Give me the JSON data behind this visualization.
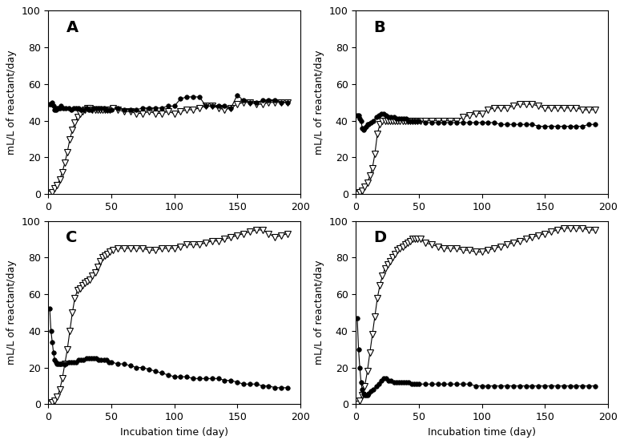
{
  "panels": [
    "A",
    "B",
    "C",
    "D"
  ],
  "xlabel": "Incubation time (day)",
  "ylabel": "mL/L of reactant/day",
  "xlim": [
    0,
    200
  ],
  "ylim": [
    0,
    100
  ],
  "xticks": [
    0,
    50,
    100,
    150,
    200
  ],
  "yticks": [
    0,
    20,
    40,
    60,
    80,
    100
  ],
  "A": {
    "co2_x": [
      1,
      2,
      3,
      4,
      5,
      6,
      7,
      8,
      9,
      10,
      12,
      14,
      16,
      18,
      20,
      22,
      24,
      26,
      28,
      30,
      32,
      34,
      36,
      38,
      40,
      42,
      44,
      46,
      48,
      50,
      55,
      60,
      65,
      70,
      75,
      80,
      85,
      90,
      95,
      100,
      105,
      110,
      115,
      120,
      125,
      130,
      135,
      140,
      145,
      150,
      155,
      160,
      165,
      170,
      175,
      180,
      185,
      190
    ],
    "co2_y": [
      49,
      49,
      50,
      48,
      46,
      46,
      47,
      47,
      47,
      48,
      47,
      47,
      47,
      46,
      47,
      47,
      47,
      46,
      46,
      47,
      46,
      46,
      47,
      47,
      47,
      47,
      47,
      46,
      46,
      46,
      47,
      46,
      46,
      46,
      47,
      47,
      47,
      47,
      48,
      48,
      52,
      53,
      53,
      53,
      48,
      48,
      48,
      48,
      47,
      54,
      51,
      50,
      50,
      51,
      51,
      51,
      50,
      50
    ],
    "ch4_x": [
      1,
      3,
      5,
      7,
      9,
      11,
      13,
      15,
      17,
      19,
      21,
      23,
      25,
      27,
      29,
      31,
      33,
      35,
      37,
      39,
      41,
      43,
      45,
      47,
      49,
      51,
      55,
      60,
      65,
      70,
      75,
      80,
      85,
      90,
      95,
      100,
      105,
      110,
      115,
      120,
      125,
      130,
      135,
      140,
      145,
      150,
      155,
      160,
      165,
      170,
      175,
      180,
      185,
      190
    ],
    "ch4_y": [
      0,
      1,
      3,
      5,
      8,
      12,
      17,
      23,
      30,
      35,
      39,
      42,
      44,
      45,
      46,
      47,
      47,
      46,
      46,
      46,
      46,
      46,
      46,
      46,
      46,
      47,
      46,
      45,
      45,
      44,
      44,
      45,
      44,
      44,
      45,
      44,
      45,
      46,
      46,
      47,
      48,
      48,
      47,
      46,
      47,
      49,
      50,
      50,
      49,
      49,
      50,
      50,
      50,
      50
    ]
  },
  "B": {
    "co2_x": [
      1,
      2,
      3,
      4,
      5,
      6,
      7,
      8,
      9,
      10,
      12,
      14,
      16,
      18,
      20,
      22,
      24,
      26,
      28,
      30,
      32,
      34,
      36,
      38,
      40,
      42,
      44,
      46,
      48,
      50,
      55,
      60,
      65,
      70,
      75,
      80,
      85,
      90,
      95,
      100,
      105,
      110,
      115,
      120,
      125,
      130,
      135,
      140,
      145,
      150,
      155,
      160,
      165,
      170,
      175,
      180,
      185,
      190
    ],
    "co2_y": [
      43,
      43,
      41,
      40,
      36,
      35,
      36,
      37,
      38,
      38,
      39,
      40,
      42,
      43,
      44,
      44,
      43,
      42,
      42,
      42,
      41,
      41,
      41,
      41,
      41,
      40,
      40,
      40,
      40,
      40,
      39,
      39,
      39,
      39,
      39,
      39,
      39,
      39,
      39,
      39,
      39,
      39,
      38,
      38,
      38,
      38,
      38,
      38,
      37,
      37,
      37,
      37,
      37,
      37,
      37,
      37,
      38,
      38
    ],
    "ch4_x": [
      1,
      3,
      5,
      7,
      9,
      11,
      13,
      15,
      17,
      19,
      21,
      23,
      25,
      27,
      29,
      31,
      33,
      35,
      37,
      39,
      41,
      43,
      45,
      47,
      49,
      51,
      55,
      60,
      65,
      70,
      75,
      80,
      85,
      90,
      95,
      100,
      105,
      110,
      115,
      120,
      125,
      130,
      135,
      140,
      145,
      150,
      155,
      160,
      165,
      170,
      175,
      180,
      185,
      190
    ],
    "ch4_y": [
      0,
      1,
      2,
      4,
      6,
      10,
      14,
      22,
      33,
      38,
      40,
      40,
      40,
      40,
      40,
      40,
      40,
      40,
      40,
      40,
      40,
      40,
      40,
      40,
      40,
      40,
      40,
      40,
      40,
      40,
      40,
      40,
      42,
      43,
      44,
      44,
      46,
      47,
      47,
      47,
      48,
      49,
      49,
      49,
      48,
      47,
      47,
      47,
      47,
      47,
      47,
      46,
      46,
      46
    ]
  },
  "C": {
    "co2_x": [
      1,
      2,
      3,
      4,
      5,
      6,
      7,
      8,
      9,
      10,
      12,
      14,
      16,
      18,
      20,
      22,
      24,
      26,
      28,
      30,
      32,
      34,
      36,
      38,
      40,
      42,
      44,
      46,
      48,
      50,
      55,
      60,
      65,
      70,
      75,
      80,
      85,
      90,
      95,
      100,
      105,
      110,
      115,
      120,
      125,
      130,
      135,
      140,
      145,
      150,
      155,
      160,
      165,
      170,
      175,
      180,
      185,
      190
    ],
    "co2_y": [
      52,
      40,
      34,
      28,
      24,
      23,
      22,
      22,
      22,
      22,
      22,
      22,
      23,
      23,
      23,
      23,
      24,
      24,
      24,
      25,
      25,
      25,
      25,
      25,
      24,
      24,
      24,
      24,
      23,
      23,
      22,
      22,
      21,
      20,
      20,
      19,
      18,
      17,
      16,
      15,
      15,
      15,
      14,
      14,
      14,
      14,
      14,
      13,
      13,
      12,
      11,
      11,
      11,
      10,
      10,
      9,
      9,
      9
    ],
    "ch4_x": [
      1,
      3,
      5,
      7,
      9,
      11,
      13,
      15,
      17,
      19,
      21,
      23,
      25,
      27,
      29,
      31,
      33,
      35,
      37,
      39,
      41,
      43,
      45,
      47,
      49,
      51,
      55,
      60,
      65,
      70,
      75,
      80,
      85,
      90,
      95,
      100,
      105,
      110,
      115,
      120,
      125,
      130,
      135,
      140,
      145,
      150,
      155,
      160,
      165,
      170,
      175,
      180,
      185,
      190
    ],
    "ch4_y": [
      0,
      1,
      2,
      4,
      8,
      14,
      22,
      30,
      40,
      50,
      58,
      62,
      63,
      65,
      66,
      67,
      68,
      70,
      72,
      75,
      78,
      80,
      81,
      82,
      83,
      84,
      85,
      85,
      85,
      85,
      85,
      84,
      84,
      85,
      85,
      85,
      86,
      87,
      87,
      87,
      88,
      89,
      89,
      90,
      91,
      92,
      93,
      94,
      95,
      95,
      93,
      91,
      92,
      93
    ]
  },
  "D": {
    "co2_x": [
      1,
      2,
      3,
      4,
      5,
      6,
      7,
      8,
      9,
      10,
      12,
      14,
      16,
      18,
      20,
      22,
      24,
      26,
      28,
      30,
      32,
      34,
      36,
      38,
      40,
      42,
      44,
      46,
      48,
      50,
      55,
      60,
      65,
      70,
      75,
      80,
      85,
      90,
      95,
      100,
      105,
      110,
      115,
      120,
      125,
      130,
      135,
      140,
      145,
      150,
      155,
      160,
      165,
      170,
      175,
      180,
      185,
      190
    ],
    "co2_y": [
      47,
      30,
      20,
      12,
      8,
      6,
      5,
      5,
      5,
      6,
      7,
      8,
      10,
      11,
      13,
      14,
      14,
      13,
      13,
      12,
      12,
      12,
      12,
      12,
      12,
      12,
      11,
      11,
      11,
      11,
      11,
      11,
      11,
      11,
      11,
      11,
      11,
      11,
      10,
      10,
      10,
      10,
      10,
      10,
      10,
      10,
      10,
      10,
      10,
      10,
      10,
      10,
      10,
      10,
      10,
      10,
      10,
      10
    ],
    "ch4_x": [
      1,
      3,
      5,
      7,
      9,
      11,
      13,
      15,
      17,
      19,
      21,
      23,
      25,
      27,
      29,
      31,
      33,
      35,
      37,
      39,
      41,
      43,
      45,
      47,
      49,
      51,
      55,
      60,
      65,
      70,
      75,
      80,
      85,
      90,
      95,
      100,
      105,
      110,
      115,
      120,
      125,
      130,
      135,
      140,
      145,
      150,
      155,
      160,
      165,
      170,
      175,
      180,
      185,
      190
    ],
    "ch4_y": [
      0,
      2,
      5,
      10,
      18,
      28,
      38,
      48,
      58,
      65,
      70,
      74,
      76,
      78,
      80,
      82,
      84,
      85,
      86,
      87,
      88,
      89,
      90,
      90,
      90,
      90,
      88,
      87,
      86,
      85,
      85,
      85,
      84,
      84,
      83,
      83,
      84,
      85,
      86,
      87,
      88,
      89,
      90,
      91,
      92,
      93,
      94,
      95,
      96,
      96,
      96,
      96,
      95,
      95
    ]
  },
  "co2_marker": "o",
  "ch4_marker": "v",
  "co2_markersize": 4,
  "ch4_markersize": 6,
  "co2_markerfacecolor": "#000000",
  "ch4_markerfacecolor": "#ffffff",
  "line_color": "#000000",
  "linewidth": 0.8,
  "bg_color": "#ffffff",
  "label_fontsize": 9,
  "panel_label_fontsize": 14
}
